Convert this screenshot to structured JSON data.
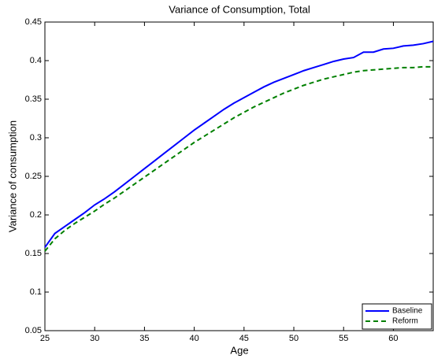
{
  "chart_data": {
    "type": "line",
    "title": "Variance of Consumption, Total",
    "x_label": "Age",
    "y_label": "Variance of consumption",
    "x": [
      25,
      26,
      27,
      28,
      29,
      30,
      31,
      32,
      33,
      34,
      35,
      36,
      37,
      38,
      39,
      40,
      41,
      42,
      43,
      44,
      45,
      46,
      47,
      48,
      49,
      50,
      51,
      52,
      53,
      54,
      55,
      56,
      57,
      58,
      59,
      60,
      61,
      62,
      63,
      64
    ],
    "series": [
      {
        "name": "Baseline",
        "color": "#0000ff",
        "dash": "solid",
        "values": [
          0.158,
          0.176,
          0.185,
          0.194,
          0.203,
          0.213,
          0.221,
          0.23,
          0.24,
          0.25,
          0.26,
          0.27,
          0.28,
          0.29,
          0.3,
          0.31,
          0.319,
          0.328,
          0.337,
          0.345,
          0.352,
          0.359,
          0.366,
          0.372,
          0.377,
          0.382,
          0.387,
          0.391,
          0.395,
          0.399,
          0.402,
          0.404,
          0.411,
          0.411,
          0.415,
          0.416,
          0.419,
          0.42,
          0.422,
          0.425
        ]
      },
      {
        "name": "Reform",
        "color": "#008000",
        "dash": "dashed",
        "values": [
          0.153,
          0.169,
          0.18,
          0.189,
          0.197,
          0.205,
          0.214,
          0.222,
          0.231,
          0.24,
          0.249,
          0.258,
          0.267,
          0.276,
          0.285,
          0.294,
          0.302,
          0.31,
          0.318,
          0.326,
          0.333,
          0.34,
          0.346,
          0.352,
          0.358,
          0.363,
          0.368,
          0.372,
          0.376,
          0.379,
          0.382,
          0.385,
          0.387,
          0.388,
          0.389,
          0.39,
          0.391,
          0.391,
          0.392,
          0.392
        ]
      }
    ],
    "xlim": [
      25,
      64
    ],
    "ylim": [
      0.05,
      0.45
    ],
    "xticks": [
      25,
      30,
      35,
      40,
      45,
      50,
      55,
      60
    ],
    "yticks": [
      0.05,
      0.1,
      0.15,
      0.2,
      0.25,
      0.3,
      0.35,
      0.4,
      0.45
    ],
    "grid": false,
    "legend": "lower right"
  }
}
